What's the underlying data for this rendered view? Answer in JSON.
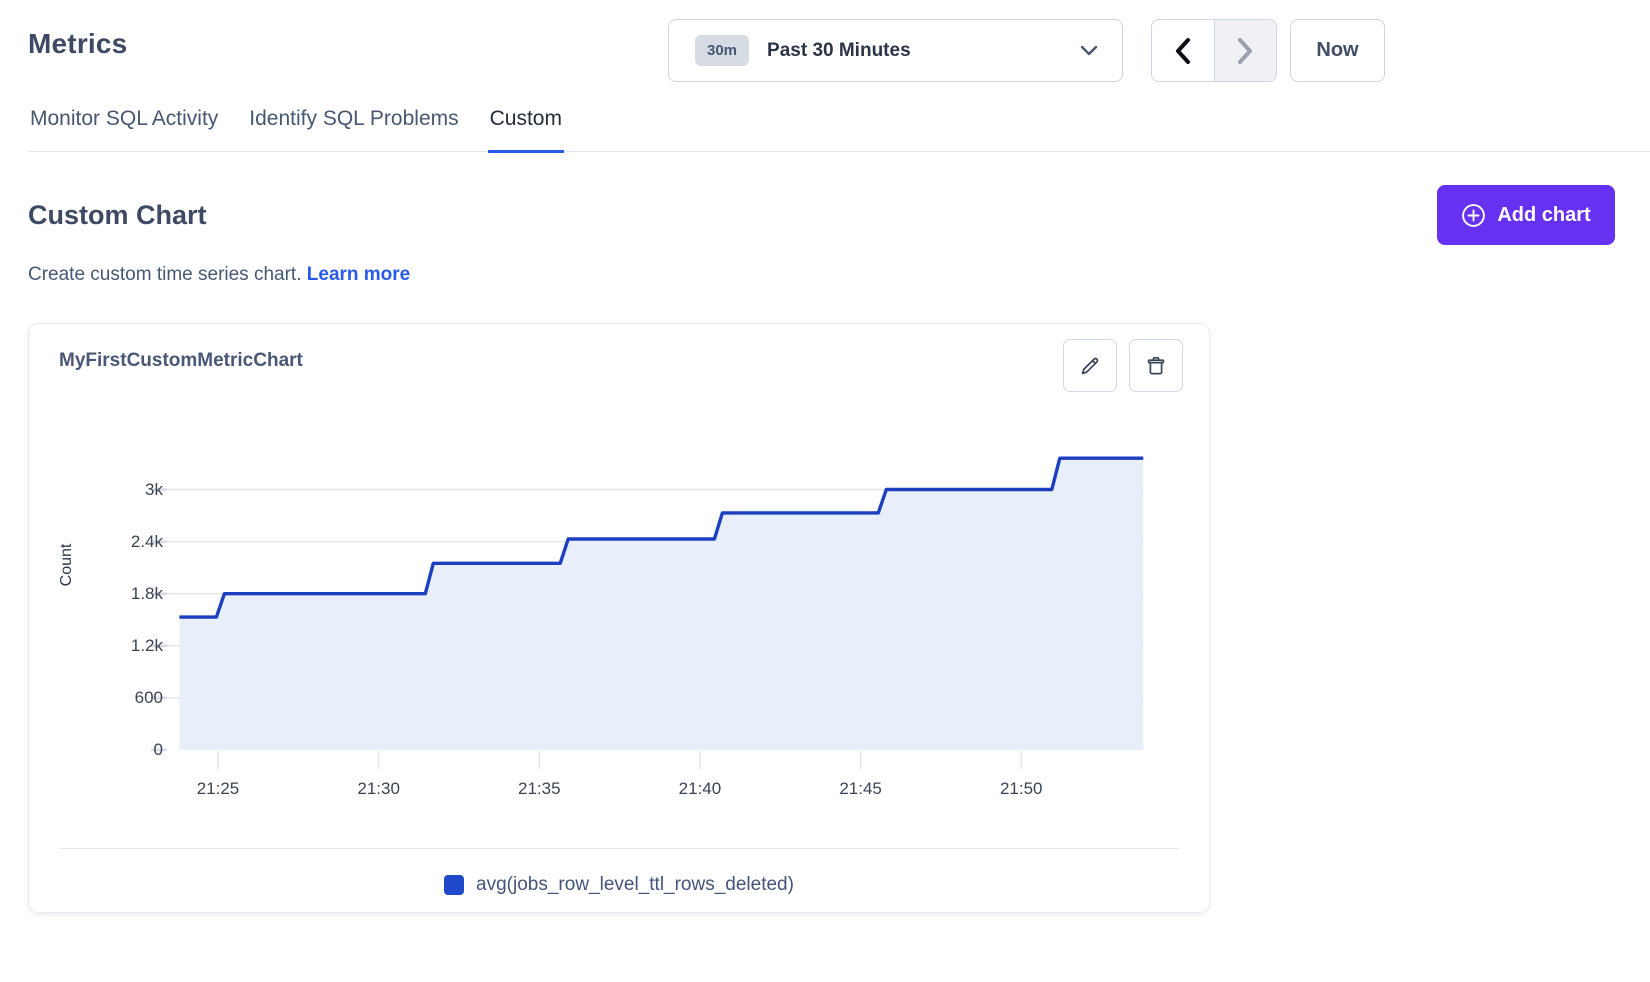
{
  "page": {
    "title": "Metrics"
  },
  "time_controls": {
    "range_badge": "30m",
    "range_label": "Past 30 Minutes",
    "now_label": "Now"
  },
  "tabs": [
    {
      "label": "Monitor SQL Activity",
      "active": false
    },
    {
      "label": "Identify SQL Problems",
      "active": false
    },
    {
      "label": "Custom",
      "active": true
    }
  ],
  "custom_section": {
    "heading": "Custom Chart",
    "description": "Create custom time series chart.",
    "learn_more_label": "Learn more",
    "add_chart_label": "Add chart"
  },
  "chart_card": {
    "title": "MyFirstCustomMetricChart",
    "legend": [
      {
        "label": "avg(jobs_row_level_ttl_rows_deleted)",
        "color": "#1E49C8"
      }
    ]
  },
  "chart_data": {
    "type": "area",
    "title": "MyFirstCustomMetricChart",
    "xlabel": "",
    "ylabel": "Count",
    "x_ticks": [
      "21:25",
      "21:30",
      "21:35",
      "21:40",
      "21:45",
      "21:50"
    ],
    "x_tick_minutes": [
      25,
      30,
      35,
      40,
      45,
      50
    ],
    "y_ticks": [
      "0",
      "600",
      "1.2k",
      "1.8k",
      "2.4k",
      "3k"
    ],
    "y_tick_values": [
      0,
      600,
      1200,
      1800,
      2400,
      3000
    ],
    "ylim": [
      0,
      3750
    ],
    "x_range": [
      "21:23:50",
      "21:53:50"
    ],
    "grid": true,
    "legend_position": "bottom",
    "series": [
      {
        "name": "avg(jobs_row_level_ttl_rows_deleted)",
        "color": "#1B3FBE",
        "fill_color": "#E9EEFB",
        "step_shape": "increasing staircase",
        "steps": [
          {
            "start": "21:23:50",
            "start_min": 23.8,
            "value": 1530
          },
          {
            "start": "21:25:10",
            "start_min": 25.2,
            "value": 1800
          },
          {
            "start": "21:31:40",
            "start_min": 31.7,
            "value": 2150
          },
          {
            "start": "21:35:55",
            "start_min": 35.9,
            "value": 2430
          },
          {
            "start": "21:40:40",
            "start_min": 40.7,
            "value": 2730
          },
          {
            "start": "21:45:50",
            "start_min": 45.8,
            "value": 3000
          },
          {
            "start": "21:51:10",
            "start_min": 51.2,
            "value": 3360
          }
        ],
        "end": "21:53:50",
        "end_min": 53.8
      }
    ]
  },
  "colors": {
    "accent_purple": "#6631F0",
    "link_blue": "#2A5AE9",
    "series_blue": "#1B3FBE",
    "series_fill": "#E9EEFB",
    "gridline": "#e2e6ee",
    "tick_stub": "#d7dbe4",
    "heading_text": "#3e4a63",
    "body_text": "#475872"
  }
}
